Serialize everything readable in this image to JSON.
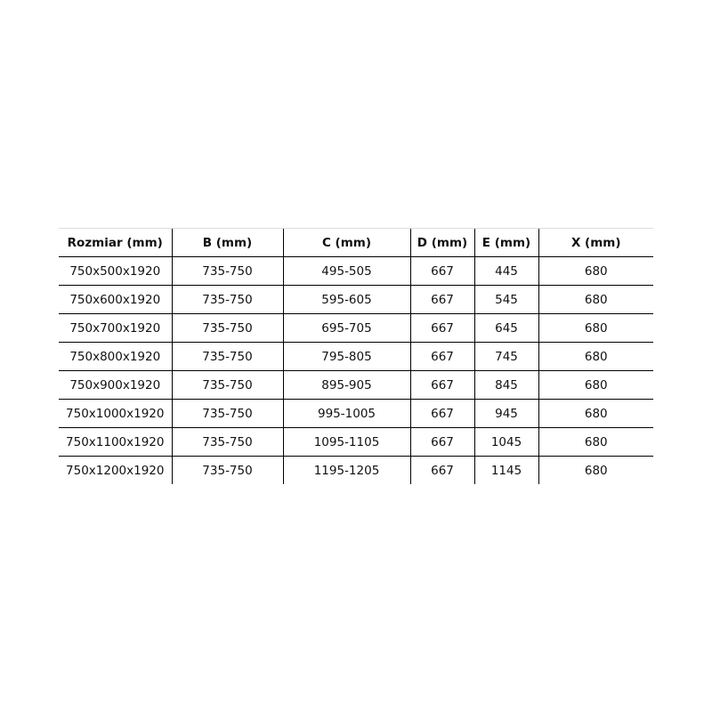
{
  "table": {
    "headers": [
      "Rozmiar (mm)",
      "B (mm)",
      "C (mm)",
      "D (mm)",
      "E (mm)",
      "X (mm)"
    ],
    "rows": [
      [
        "750x500x1920",
        "735-750",
        "495-505",
        "667",
        "445",
        "680"
      ],
      [
        "750x600x1920",
        "735-750",
        "595-605",
        "667",
        "545",
        "680"
      ],
      [
        "750x700x1920",
        "735-750",
        "695-705",
        "667",
        "645",
        "680"
      ],
      [
        "750x800x1920",
        "735-750",
        "795-805",
        "667",
        "745",
        "680"
      ],
      [
        "750x900x1920",
        "735-750",
        "895-905",
        "667",
        "845",
        "680"
      ],
      [
        "750x1000x1920",
        "735-750",
        "995-1005",
        "667",
        "945",
        "680"
      ],
      [
        "750x1100x1920",
        "735-750",
        "1095-1105",
        "667",
        "1045",
        "680"
      ],
      [
        "750x1200x1920",
        "735-750",
        "1195-1205",
        "667",
        "1145",
        "680"
      ]
    ]
  }
}
